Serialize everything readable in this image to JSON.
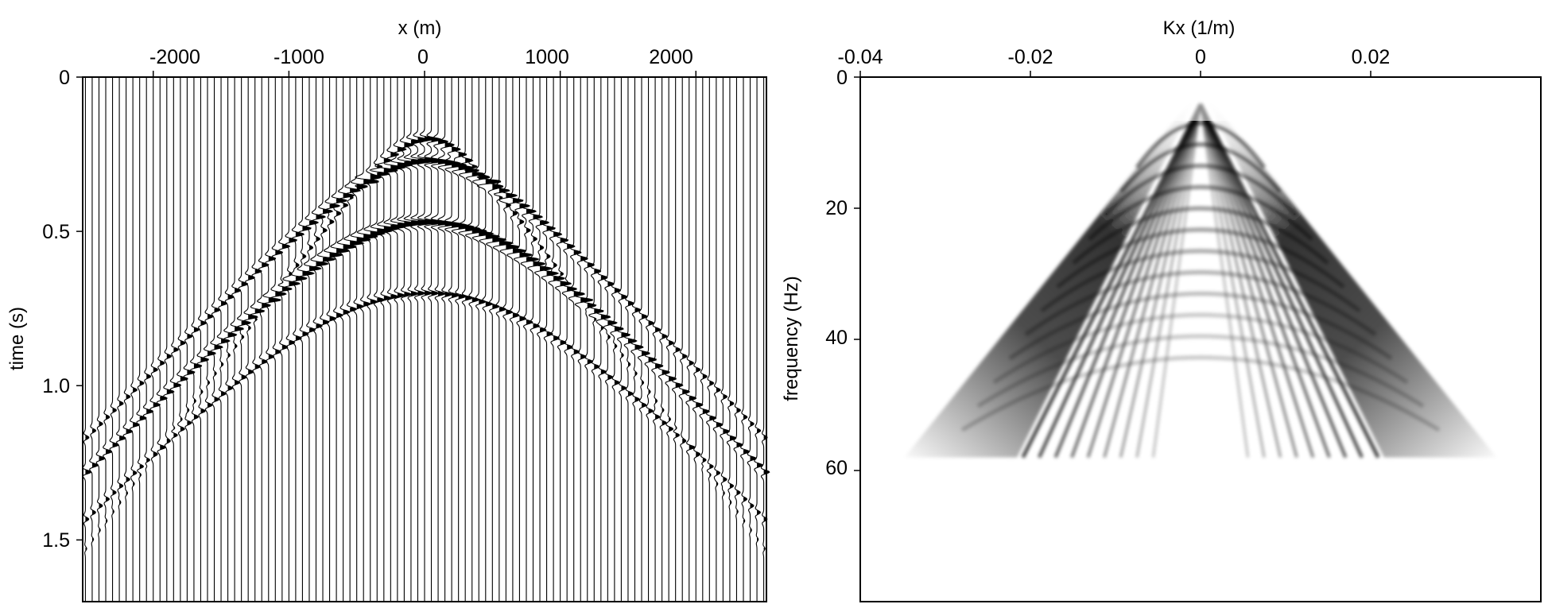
{
  "chart_data": [
    {
      "type": "seismic-wiggle",
      "xlabel": "x (m)",
      "ylabel": "time (s)",
      "xlim": [
        -2520,
        2520
      ],
      "ylim": [
        0,
        1.7
      ],
      "x_axis_position": "top",
      "y_inverted": true,
      "x_ticks": [
        {
          "value": -2000,
          "label": "-2000"
        },
        {
          "value": -1000,
          "label": "-1000"
        },
        {
          "value": 0,
          "label": "0"
        },
        {
          "value": 1000,
          "label": "1000"
        },
        {
          "value": 2000,
          "label": "2000"
        }
      ],
      "y_ticks": [
        {
          "value": 0,
          "label": "0"
        },
        {
          "value": 0.5,
          "label": "0.5"
        },
        {
          "value": 1.0,
          "label": "1.0"
        },
        {
          "value": 1.5,
          "label": "1.5"
        }
      ],
      "trace_range_m": [
        -2500,
        2500
      ],
      "trace_count": 101,
      "events": [
        {
          "apex_time_s": 0.27,
          "velocity_m_s": 2200,
          "strength": 1.0
        },
        {
          "apex_time_s": 0.47,
          "velocity_m_s": 2100,
          "strength": 1.0
        },
        {
          "apex_time_s": 0.7,
          "velocity_m_s": 2000,
          "strength": 0.45
        },
        {
          "apex_time_s": 0.2,
          "velocity_m_s": 1650,
          "strength": 0.65
        }
      ]
    },
    {
      "type": "heatmap",
      "xlabel": "Kx (1/m)",
      "ylabel": "frequency (Hz)",
      "xlim": [
        -0.04,
        0.04
      ],
      "ylim": [
        0,
        80
      ],
      "x_axis_position": "top",
      "y_inverted": true,
      "x_ticks": [
        {
          "value": -0.04,
          "label": "-0.04"
        },
        {
          "value": -0.02,
          "label": "-0.02"
        },
        {
          "value": 0,
          "label": "0"
        },
        {
          "value": 0.02,
          "label": "0.02"
        }
      ],
      "y_ticks": [
        {
          "value": 0,
          "label": "0"
        },
        {
          "value": 20,
          "label": "20"
        },
        {
          "value": 40,
          "label": "40"
        },
        {
          "value": 60,
          "label": "60"
        }
      ],
      "colormap": "white-to-black",
      "cone_edge_kx_at_60hz": 0.036,
      "max_frequency_hz": 58
    }
  ]
}
